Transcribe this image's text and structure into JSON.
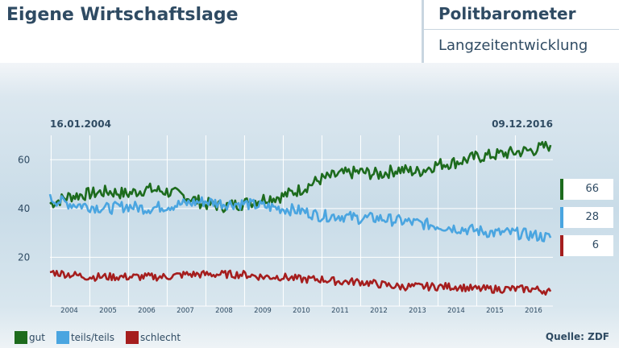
{
  "header": {
    "title": "Eigene Wirtschaftslage",
    "brand": "Politbarometer",
    "subtitle": "Langzeitentwicklung"
  },
  "chart_data": {
    "type": "line",
    "title": "Eigene Wirtschaftslage",
    "start_label": "16.01.2004",
    "end_label": "09.12.2016",
    "ylim": [
      0,
      70
    ],
    "yticks": [
      20,
      40,
      60
    ],
    "xticks": [
      "2004",
      "2005",
      "2006",
      "2007",
      "2008",
      "2009",
      "2010",
      "2011",
      "2012",
      "2013",
      "2014",
      "2015",
      "2016"
    ],
    "grid": true,
    "legend_position": "bottom-left",
    "x": [
      2004.0,
      2004.5,
      2005.0,
      2005.5,
      2006.0,
      2006.5,
      2007.0,
      2007.5,
      2008.0,
      2008.5,
      2009.0,
      2009.5,
      2010.0,
      2010.5,
      2011.0,
      2011.5,
      2012.0,
      2012.5,
      2013.0,
      2013.5,
      2014.0,
      2014.5,
      2015.0,
      2015.5,
      2016.0,
      2016.5,
      2016.94
    ],
    "series": [
      {
        "name": "gut",
        "color": "#1d6b1d",
        "values": [
          42,
          45,
          46,
          47,
          46,
          48,
          47,
          45,
          42,
          41,
          42,
          44,
          45,
          48,
          52,
          54,
          55,
          54,
          56,
          55,
          58,
          59,
          61,
          62,
          63,
          64,
          66
        ]
      },
      {
        "name": "teils/teils",
        "color": "#4aa5e0",
        "values": [
          44,
          42,
          41,
          40,
          41,
          40,
          41,
          42,
          43,
          42,
          42,
          41,
          40,
          39,
          37,
          37,
          36,
          36,
          35,
          34,
          33,
          32,
          31,
          30,
          30,
          29,
          28
        ]
      },
      {
        "name": "schlecht",
        "color": "#a51e1e",
        "values": [
          14,
          13,
          12,
          12,
          12,
          12,
          12,
          13,
          13,
          13,
          13,
          12,
          12,
          11,
          11,
          10,
          10,
          9,
          8,
          8,
          8,
          8,
          7,
          7,
          7,
          7,
          6
        ]
      }
    ],
    "end_values": [
      "66",
      "28",
      "6"
    ]
  },
  "legend": {
    "gut": "gut",
    "teils": "teils/teils",
    "schlecht": "schlecht"
  },
  "source": "Quelle: ZDF"
}
